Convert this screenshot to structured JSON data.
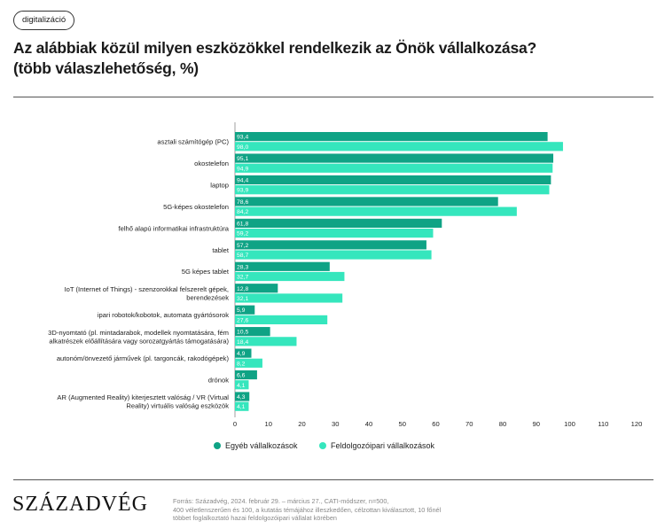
{
  "header": {
    "tag": "digitalizáció",
    "title_line1": "Az alábbiak közül milyen eszközökkel rendelkezik az Önök vállalkozása?",
    "title_line2": "(több válaszlehetőség, %)"
  },
  "colors": {
    "series1": "#0fa385",
    "series2": "#35e6bd"
  },
  "chart_data": {
    "type": "bar",
    "orientation": "horizontal",
    "categories": [
      "asztali számítógép (PC)",
      "okostelefon",
      "laptop",
      "5G-képes okostelefon",
      "felhő alapú informatikai infrastruktúra",
      "tablet",
      "5G képes tablet",
      "IoT (Internet of Things) - szenzorokkal felszerelt gépek, berendezések",
      "ipari robotok/kobotok, automata gyártósorok",
      "3D-nyomtató (pl. mintadarabok, modellek nyomtatására, fém alkatrészek előállítására vagy sorozatgyártás támogatására)",
      "autonóm/önvezető járművek (pl. targoncák, rakodógépek)",
      "drónok",
      "AR (Augmented Reality) kiterjesztett valóság / VR (Virtual Reality) virtuális valóság eszközök"
    ],
    "category_lines": [
      [
        "asztali számítógép (PC)"
      ],
      [
        "okostelefon"
      ],
      [
        "laptop"
      ],
      [
        "5G-képes okostelefon"
      ],
      [
        "felhő alapú informatikai infrastruktúra"
      ],
      [
        "tablet"
      ],
      [
        "5G képes tablet"
      ],
      [
        "IoT (Internet of Things) - szenzorokkal felszerelt gépek,",
        "berendezések"
      ],
      [
        "ipari robotok/kobotok, automata gyártósorok"
      ],
      [
        "3D-nyomtató (pl. mintadarabok, modellek nyomtatására, fém",
        "alkatrészek előállítására vagy sorozatgyártás támogatására)"
      ],
      [
        "autonóm/önvezető járművek (pl. targoncák, rakodógépek)"
      ],
      [
        "drónok"
      ],
      [
        "AR (Augmented Reality) kiterjesztett valóság / VR (Virtual",
        "Reality) virtuális valóság eszközök"
      ]
    ],
    "series": [
      {
        "name": "Egyéb vállalkozások",
        "values": [
          93.4,
          95.1,
          94.4,
          78.6,
          61.8,
          57.2,
          28.3,
          12.8,
          5.9,
          10.5,
          4.9,
          6.6,
          4.3
        ],
        "labels": [
          "93,4",
          "95,1",
          "94,4",
          "78,6",
          "61,8",
          "57,2",
          "28,3",
          "12,8",
          "5,9",
          "10,5",
          "4,9",
          "6,6",
          "4,3"
        ]
      },
      {
        "name": "Feldolgozóipari vállalkozások",
        "values": [
          98.0,
          94.9,
          93.9,
          84.2,
          59.2,
          58.7,
          32.7,
          32.1,
          27.6,
          18.4,
          8.2,
          4.1,
          4.1
        ],
        "labels": [
          "98,0",
          "94,9",
          "93,9",
          "84,2",
          "59,2",
          "58,7",
          "32,7",
          "32,1",
          "27,6",
          "18,4",
          "8,2",
          "4,1",
          "4,1"
        ]
      }
    ],
    "xlim": [
      0,
      120
    ],
    "xticks": [
      0,
      10,
      20,
      30,
      40,
      50,
      60,
      70,
      80,
      90,
      100,
      110,
      120
    ],
    "grid": false,
    "legend_position": "bottom"
  },
  "footer": {
    "logo": "SZÁZADVÉG",
    "source_line1": "Forrás: Századvég, 2024. február 29. – március 27., CATI-módszer, n=500,",
    "source_line2": "400 véletlenszerűen és 100, a kutatás témájához illeszkedően, célzottan kiválasztott, 10 főnél",
    "source_line3": "többet foglalkoztató hazai feldolgozóipari vállalat körében"
  }
}
